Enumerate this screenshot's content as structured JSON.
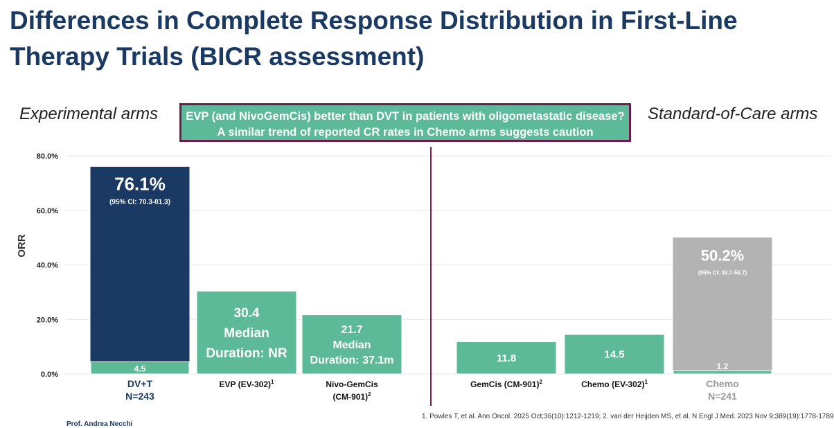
{
  "title": "Differences in Complete Response Distribution in First-Line Therapy Trials (BICR assessment)",
  "left_heading": "Experimental arms",
  "right_heading": "Standard-of-Care arms",
  "callout": {
    "line1": "EVP (and NivoGemCis) better than DVT in patients with oligometastatic disease?",
    "line2": "A similar trend of reported CR rates in Chemo arms suggests caution"
  },
  "footnote": "1. Powles T, et al. Ann Oncol. 2025 Oct;36(10):1212-1219; 2. van der Heijden MS, et al. N Engl J Med. 2023 Nov 9;389(19):1778-1789",
  "presenter": "Prof. Andrea Necchi",
  "colors": {
    "navy": "#1a3a63",
    "green": "#5cba98",
    "gray": "#b3b3b3",
    "divider": "#7a1f4e"
  },
  "chart_data": {
    "type": "bar",
    "ylabel": "ORR",
    "ylim": [
      0,
      80
    ],
    "yticks": [
      0,
      20,
      40,
      60,
      80
    ],
    "ytick_labels": [
      "0.0%",
      "20.0%",
      "40.0%",
      "60.0%",
      "80.0%"
    ],
    "bars": [
      {
        "group": "experimental",
        "label_line1": "DV+T",
        "label_line2": "N=243",
        "sup": "",
        "style": "navy",
        "total": 76.1,
        "cr": 4.5,
        "cr_label": "4.5",
        "value_label": "76.1%",
        "ci_label": "(95% CI: 70.3-81.3)"
      },
      {
        "group": "experimental",
        "label_line1": "EVP (EV-302)",
        "label_line2": "",
        "sup": "1",
        "style": "green",
        "total": 30.4,
        "cr": null,
        "text_lines": [
          "30.4",
          "Median",
          "Duration: NR"
        ]
      },
      {
        "group": "experimental",
        "label_line1": "Nivo-GemCis",
        "label_line2": "(CM-901)",
        "sup": "2",
        "style": "green",
        "total": 21.7,
        "cr": null,
        "text_lines": [
          "21.7",
          "Median",
          "Duration: 37.1m"
        ]
      },
      {
        "group": "standard",
        "label_line1": "GemCis (CM-901)",
        "label_line2": "",
        "sup": "2",
        "style": "green",
        "total": 11.8,
        "cr": null,
        "text_lines": [
          "11.8"
        ]
      },
      {
        "group": "standard",
        "label_line1": "Chemo (EV-302)",
        "label_line2": "",
        "sup": "1",
        "style": "green",
        "total": 14.5,
        "cr": null,
        "text_lines": [
          "14.5"
        ]
      },
      {
        "group": "standard",
        "label_line1": "Chemo",
        "label_line2": "N=241",
        "sup": "",
        "style": "gray",
        "total": 50.2,
        "cr": 1.2,
        "cr_label": "1.2",
        "value_label": "50.2%",
        "ci_label": "(95% CI: 43.7-56.7)"
      }
    ]
  }
}
